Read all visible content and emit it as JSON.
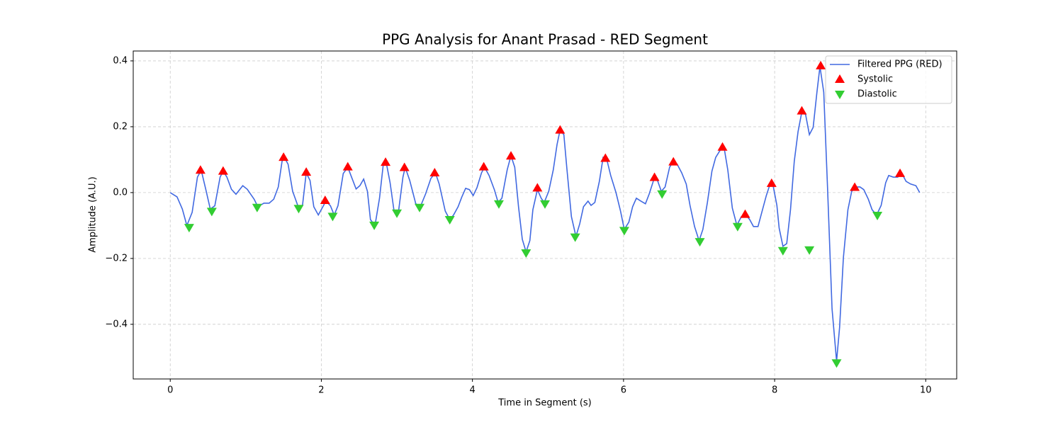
{
  "chart_data": {
    "type": "line",
    "title": "PPG Analysis for Anant Prasad - RED Segment",
    "x_label": "Time in Segment (s)",
    "y_label": "Amplitude (A.U.)",
    "xlim": [
      -0.49,
      10.41
    ],
    "ylim": [
      -0.566,
      0.43
    ],
    "xticks": [
      0,
      2,
      4,
      6,
      8,
      10
    ],
    "yticks": [
      {
        "value": -0.4,
        "label": "−0.4"
      },
      {
        "value": -0.2,
        "label": "−0.2"
      },
      {
        "value": 0,
        "label": "0.0"
      },
      0.2,
      0.4
    ],
    "grid": true,
    "legend": "upper right",
    "series": [
      {
        "name": "Filtered PPG (RED)",
        "color": "#4169e1",
        "marker": "line",
        "x": [
          0,
          0.09,
          0.16,
          0.22,
          0.29,
          0.36,
          0.41,
          0.47,
          0.53,
          0.59,
          0.66,
          0.7,
          0.75,
          0.81,
          0.87,
          0.96,
          1.02,
          1.11,
          1.16,
          1.24,
          1.31,
          1.37,
          1.43,
          1.48,
          1.51,
          1.56,
          1.62,
          1.7,
          1.75,
          1.8,
          1.85,
          1.9,
          1.96,
          2.02,
          2.06,
          2.12,
          2.17,
          2.22,
          2.29,
          2.35,
          2.4,
          2.46,
          2.51,
          2.56,
          2.61,
          2.65,
          2.71,
          2.77,
          2.82,
          2.86,
          2.91,
          2.96,
          3.02,
          3.08,
          3.11,
          3.17,
          3.25,
          3.31,
          3.38,
          3.45,
          3.51,
          3.56,
          3.64,
          3.7,
          3.75,
          3.81,
          3.86,
          3.91,
          3.96,
          4.01,
          4.06,
          4.12,
          4.16,
          4.22,
          4.29,
          4.34,
          4.39,
          4.46,
          4.51,
          4.56,
          4.61,
          4.66,
          4.71,
          4.76,
          4.8,
          4.86,
          4.91,
          4.95,
          5.01,
          5.07,
          5.12,
          5.16,
          5.21,
          5.25,
          5.31,
          5.37,
          5.42,
          5.47,
          5.53,
          5.57,
          5.62,
          5.68,
          5.73,
          5.78,
          5.83,
          5.9,
          5.96,
          6.01,
          6.07,
          6.12,
          6.17,
          6.23,
          6.29,
          6.34,
          6.4,
          6.44,
          6.5,
          6.55,
          6.61,
          6.66,
          6.71,
          6.77,
          6.83,
          6.88,
          6.94,
          7.0,
          7.05,
          7.11,
          7.17,
          7.22,
          7.28,
          7.33,
          7.38,
          7.44,
          7.5,
          7.56,
          7.62,
          7.67,
          7.72,
          7.78,
          7.83,
          7.89,
          7.94,
          7.98,
          8.03,
          8.06,
          8.11,
          8.16,
          8.21,
          8.26,
          8.31,
          8.36,
          8.41,
          8.46,
          8.51,
          8.56,
          8.6,
          8.65,
          8.7,
          8.76,
          8.82,
          8.86,
          8.91,
          8.97,
          9.02,
          9.08,
          9.13,
          9.18,
          9.24,
          9.29,
          9.35,
          9.41,
          9.47,
          9.51,
          9.57,
          9.63,
          9.68,
          9.74,
          9.8,
          9.87,
          9.92
        ],
        "values": [
          0,
          -0.013,
          -0.05,
          -0.1,
          -0.06,
          0.047,
          0.068,
          0.01,
          -0.05,
          -0.04,
          0.047,
          0.065,
          0.047,
          0.01,
          -0.005,
          0.021,
          0.01,
          -0.02,
          -0.043,
          -0.032,
          -0.032,
          -0.02,
          0.017,
          0.095,
          0.107,
          0.086,
          0.004,
          -0.047,
          -0.04,
          0.06,
          0.037,
          -0.043,
          -0.068,
          -0.043,
          -0.026,
          -0.04,
          -0.068,
          -0.04,
          0.058,
          0.077,
          0.047,
          0.011,
          0.021,
          0.041,
          0.004,
          -0.082,
          -0.1,
          -0.017,
          0.086,
          0.09,
          0.03,
          -0.052,
          -0.06,
          0.047,
          0.077,
          0.037,
          -0.034,
          -0.043,
          -0.004,
          0.043,
          0.06,
          0.026,
          -0.056,
          -0.082,
          -0.068,
          -0.043,
          -0.013,
          0.013,
          0.009,
          -0.009,
          0.015,
          0.06,
          0.077,
          0.052,
          0.009,
          -0.03,
          -0.017,
          0.069,
          0.112,
          0.077,
          -0.043,
          -0.142,
          -0.18,
          -0.146,
          -0.052,
          0.009,
          -0.017,
          -0.03,
          0.004,
          0.069,
          0.146,
          0.19,
          0.176,
          0.073,
          -0.073,
          -0.133,
          -0.095,
          -0.043,
          -0.026,
          -0.039,
          -0.03,
          0.034,
          0.107,
          0.099,
          0.052,
          0,
          -0.056,
          -0.112,
          -0.09,
          -0.043,
          -0.017,
          -0.026,
          -0.034,
          -0.004,
          0.039,
          0.043,
          0.004,
          0.017,
          0.077,
          0.095,
          0.086,
          0.06,
          0.026,
          -0.039,
          -0.103,
          -0.146,
          -0.112,
          -0.03,
          0.065,
          0.107,
          0.129,
          0.138,
          0.069,
          -0.047,
          -0.099,
          -0.073,
          -0.068,
          -0.082,
          -0.103,
          -0.103,
          -0.06,
          -0.009,
          0.026,
          0.021,
          -0.039,
          -0.108,
          -0.163,
          -0.155,
          -0.052,
          0.095,
          0.185,
          0.245,
          0.237,
          0.176,
          0.198,
          0.305,
          0.383,
          0.305,
          0.017,
          -0.353,
          -0.512,
          -0.409,
          -0.198,
          -0.052,
          0.004,
          0.017,
          0.017,
          0.009,
          -0.02,
          -0.052,
          -0.068,
          -0.039,
          0.03,
          0.052,
          0.047,
          0.047,
          0.06,
          0.034,
          0.026,
          0.021,
          0
        ]
      },
      {
        "name": "Systolic",
        "color": "#ff0000",
        "marker": "triangle-up",
        "x": [
          0.4,
          0.7,
          1.5,
          1.8,
          2.05,
          2.35,
          2.85,
          3.1,
          3.5,
          4.15,
          4.51,
          4.86,
          5.16,
          5.76,
          6.41,
          6.66,
          7.31,
          7.61,
          7.96,
          8.36,
          8.61,
          9.06,
          9.66
        ],
        "values": [
          0.068,
          0.065,
          0.107,
          0.062,
          -0.024,
          0.078,
          0.092,
          0.076,
          0.06,
          0.078,
          0.111,
          0.014,
          0.19,
          0.104,
          0.046,
          0.093,
          0.138,
          -0.066,
          0.028,
          0.248,
          0.385,
          0.016,
          0.058
        ]
      },
      {
        "name": "Diastolic",
        "color": "#32cd32",
        "marker": "triangle-down",
        "x": [
          0.25,
          0.55,
          1.15,
          1.7,
          2.15,
          2.7,
          3.0,
          3.3,
          3.7,
          4.35,
          4.71,
          4.96,
          5.36,
          6.01,
          6.51,
          7.01,
          7.51,
          8.11,
          8.46,
          8.82,
          9.36
        ],
        "values": [
          -0.106,
          -0.057,
          -0.045,
          -0.048,
          -0.072,
          -0.099,
          -0.062,
          -0.045,
          -0.082,
          -0.034,
          -0.183,
          -0.034,
          -0.135,
          -0.115,
          -0.004,
          -0.149,
          -0.103,
          -0.176,
          -0.174,
          -0.517,
          -0.069
        ]
      }
    ]
  }
}
